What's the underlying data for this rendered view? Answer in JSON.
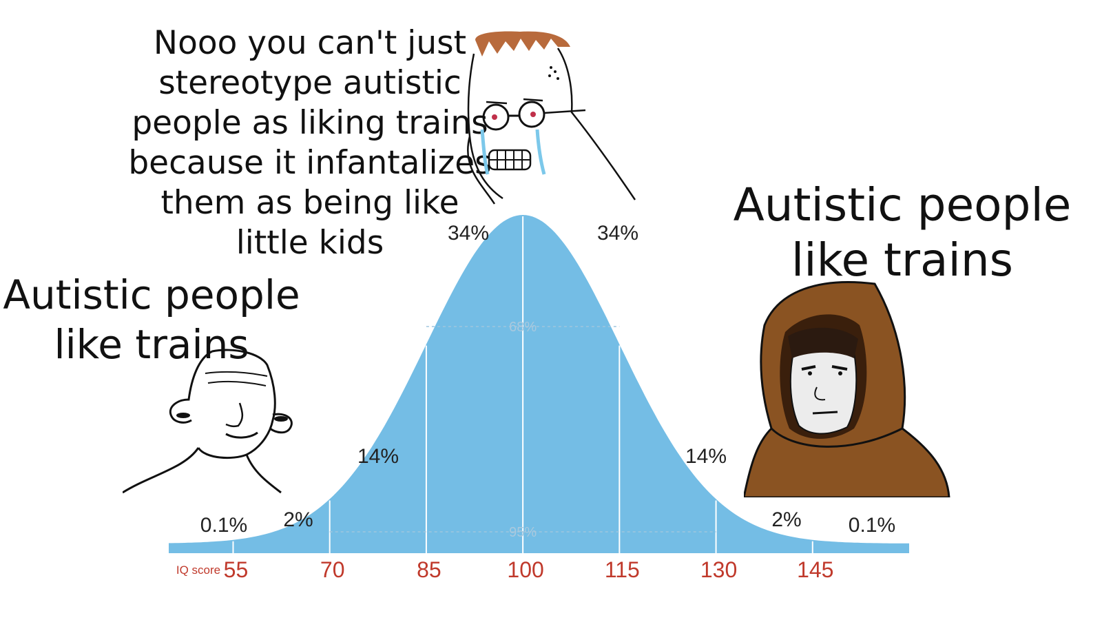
{
  "captions": {
    "top": "Nooo you can't just stereotype autistic people as liking trains because it infantalizes them as being like little kids",
    "left": "Autistic people like trains",
    "right": "Autistic people like trains"
  },
  "chart_data": {
    "type": "area",
    "distribution": "normal",
    "mean": 100,
    "sd": 15,
    "xlabel": "IQ score",
    "ticks": [
      55,
      70,
      85,
      100,
      115,
      130,
      145
    ],
    "xlim": [
      45,
      160
    ],
    "segments": [
      {
        "label": "0.1%",
        "from": 45,
        "to": 55
      },
      {
        "label": "2%",
        "from": 55,
        "to": 70
      },
      {
        "label": "14%",
        "from": 70,
        "to": 85
      },
      {
        "label": "34%",
        "from": 85,
        "to": 100
      },
      {
        "label": "34%",
        "from": 100,
        "to": 115
      },
      {
        "label": "14%",
        "from": 115,
        "to": 130
      },
      {
        "label": "2%",
        "from": 130,
        "to": 145
      },
      {
        "label": "0.1%",
        "from": 145,
        "to": 160
      }
    ],
    "ranges": [
      {
        "label": "68%",
        "from": 85,
        "to": 115
      },
      {
        "label": "95%",
        "from": 70,
        "to": 130
      }
    ],
    "colors": {
      "fill": "#74bde5",
      "tick_text": "#c0392b"
    }
  },
  "characters": [
    {
      "name": "simple-wojak",
      "position": "left"
    },
    {
      "name": "crying-glasses-wojak",
      "position": "center"
    },
    {
      "name": "hooded-wojak",
      "position": "right"
    }
  ]
}
